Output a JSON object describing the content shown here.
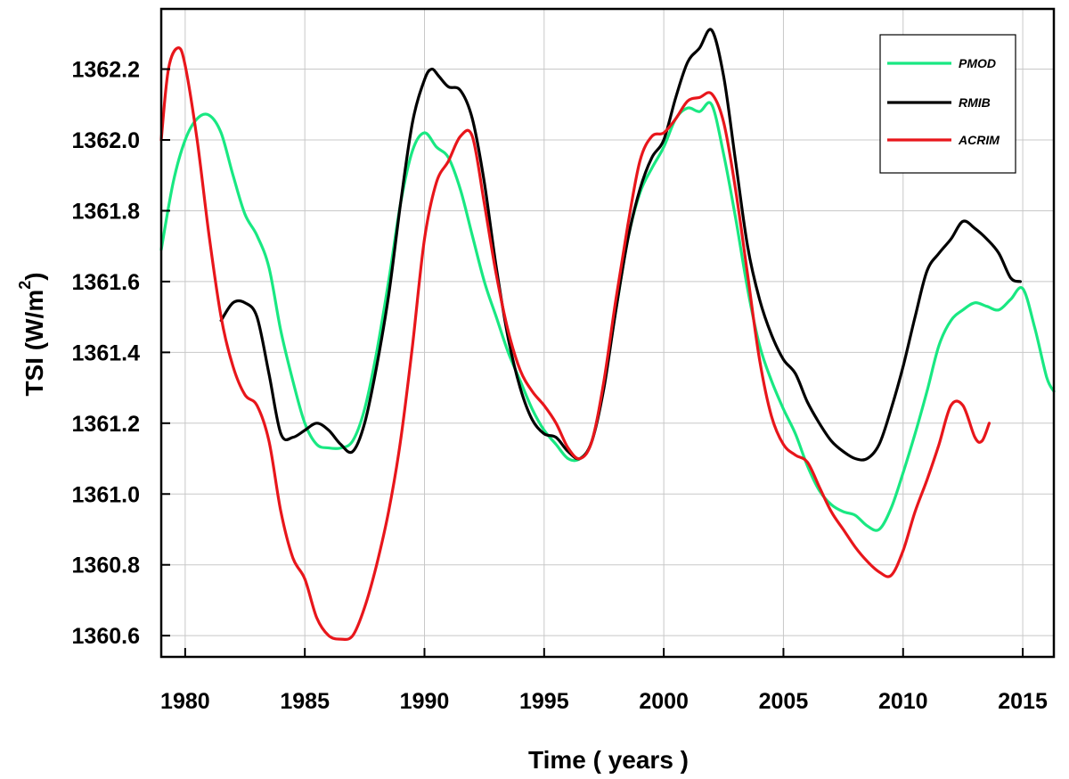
{
  "chart_data": {
    "type": "line",
    "title": "",
    "xlabel": "Time ( years )",
    "ylabel": "TSI (W/m",
    "ylabel_superscript": "2",
    "ylabel_close": ")",
    "xlim": [
      1979,
      2016.3
    ],
    "ylim": [
      1360.54,
      1362.37
    ],
    "x_ticks": [
      1980,
      1985,
      1990,
      1995,
      2000,
      2005,
      2010,
      2015
    ],
    "x_tick_labels": [
      "1980",
      "1985",
      "1990",
      "1995",
      "2000",
      "2005",
      "2010",
      "2015"
    ],
    "y_ticks": [
      1360.6,
      1360.8,
      1361.0,
      1361.2,
      1361.4,
      1361.6,
      1361.8,
      1362.0,
      1362.2
    ],
    "y_tick_labels": [
      "1360.6",
      "1360.8",
      "1361.0",
      "1361.2",
      "1361.4",
      "1361.6",
      "1361.8",
      "1362.0",
      "1362.2"
    ],
    "grid": true,
    "legend_position": "top-right",
    "series": [
      {
        "name": "PMOD",
        "color": "#19e882",
        "x": [
          1979.0,
          1979.5,
          1980.0,
          1980.5,
          1981.0,
          1981.5,
          1982.0,
          1982.5,
          1983.0,
          1983.5,
          1984.0,
          1984.5,
          1985.0,
          1985.5,
          1986.0,
          1986.5,
          1987.0,
          1987.5,
          1988.0,
          1988.5,
          1989.0,
          1989.5,
          1990.0,
          1990.5,
          1991.0,
          1991.5,
          1992.0,
          1992.5,
          1993.0,
          1993.5,
          1994.0,
          1994.5,
          1995.0,
          1995.5,
          1996.0,
          1996.5,
          1997.0,
          1997.5,
          1998.0,
          1998.5,
          1999.0,
          1999.5,
          2000.0,
          2000.5,
          2001.0,
          2001.5,
          2002.0,
          2002.5,
          2003.0,
          2003.5,
          2004.0,
          2004.5,
          2005.0,
          2005.5,
          2006.0,
          2006.5,
          2007.0,
          2007.5,
          2008.0,
          2008.5,
          2009.0,
          2009.5,
          2010.0,
          2010.5,
          2011.0,
          2011.5,
          2012.0,
          2012.5,
          2013.0,
          2013.5,
          2014.0,
          2014.5,
          2015.0,
          2015.5,
          2016.0,
          2016.3
        ],
        "values": [
          1361.69,
          1361.88,
          1362.0,
          1362.06,
          1362.07,
          1362.02,
          1361.9,
          1361.79,
          1361.73,
          1361.64,
          1361.46,
          1361.32,
          1361.2,
          1361.14,
          1361.13,
          1361.13,
          1361.15,
          1361.24,
          1361.4,
          1361.6,
          1361.82,
          1361.97,
          1362.02,
          1361.98,
          1361.95,
          1361.86,
          1361.73,
          1361.6,
          1361.5,
          1361.4,
          1361.32,
          1361.24,
          1361.18,
          1361.14,
          1361.1,
          1361.1,
          1361.15,
          1361.31,
          1361.52,
          1361.72,
          1361.85,
          1361.92,
          1361.98,
          1362.06,
          1362.09,
          1362.08,
          1362.1,
          1361.96,
          1361.78,
          1361.58,
          1361.42,
          1361.32,
          1361.24,
          1361.17,
          1361.08,
          1361.01,
          1360.97,
          1360.95,
          1360.94,
          1360.91,
          1360.9,
          1360.96,
          1361.06,
          1361.17,
          1361.29,
          1361.42,
          1361.49,
          1361.52,
          1361.54,
          1361.53,
          1361.52,
          1361.55,
          1361.58,
          1361.47,
          1361.33,
          1361.29
        ]
      },
      {
        "name": "RMIB",
        "color": "#000000",
        "x": [
          1981.5,
          1982.0,
          1982.5,
          1983.0,
          1983.5,
          1984.0,
          1984.5,
          1985.0,
          1985.5,
          1986.0,
          1986.5,
          1987.0,
          1987.5,
          1988.0,
          1988.5,
          1989.0,
          1989.5,
          1990.0,
          1990.3,
          1990.6,
          1991.0,
          1991.5,
          1992.0,
          1992.5,
          1993.0,
          1993.5,
          1994.0,
          1994.5,
          1995.0,
          1995.5,
          1996.0,
          1996.5,
          1997.0,
          1997.5,
          1998.0,
          1998.5,
          1999.0,
          1999.5,
          2000.0,
          2000.5,
          2001.0,
          2001.5,
          2002.0,
          2002.5,
          2003.0,
          2003.5,
          2004.0,
          2004.5,
          2005.0,
          2005.5,
          2006.0,
          2006.5,
          2007.0,
          2007.5,
          2008.0,
          2008.5,
          2009.0,
          2009.5,
          2010.0,
          2010.5,
          2011.0,
          2011.5,
          2012.0,
          2012.5,
          2013.0,
          2013.5,
          2014.0,
          2014.5,
          2014.9
        ],
        "values": [
          1361.49,
          1361.54,
          1361.54,
          1361.5,
          1361.34,
          1361.17,
          1361.16,
          1361.18,
          1361.2,
          1361.18,
          1361.14,
          1361.12,
          1361.2,
          1361.36,
          1361.56,
          1361.82,
          1362.05,
          1362.17,
          1362.2,
          1362.18,
          1362.15,
          1362.14,
          1362.06,
          1361.88,
          1361.64,
          1361.44,
          1361.3,
          1361.21,
          1361.17,
          1361.16,
          1361.12,
          1361.1,
          1361.15,
          1361.3,
          1361.52,
          1361.72,
          1361.86,
          1361.95,
          1362.0,
          1362.12,
          1362.22,
          1362.26,
          1362.31,
          1362.18,
          1361.94,
          1361.7,
          1361.55,
          1361.45,
          1361.38,
          1361.34,
          1361.26,
          1361.2,
          1361.15,
          1361.12,
          1361.1,
          1361.1,
          1361.14,
          1361.24,
          1361.36,
          1361.5,
          1361.63,
          1361.68,
          1361.72,
          1361.77,
          1361.75,
          1361.72,
          1361.68,
          1361.61,
          1361.6
        ]
      },
      {
        "name": "ACRIM",
        "color": "#e8161b",
        "x": [
          1979.0,
          1979.3,
          1979.7,
          1980.0,
          1980.5,
          1981.0,
          1981.5,
          1982.0,
          1982.5,
          1983.0,
          1983.5,
          1984.0,
          1984.5,
          1985.0,
          1985.5,
          1986.0,
          1986.5,
          1987.0,
          1987.5,
          1988.0,
          1988.5,
          1989.0,
          1989.5,
          1990.0,
          1990.5,
          1991.0,
          1991.5,
          1992.0,
          1992.5,
          1993.0,
          1993.5,
          1994.0,
          1994.5,
          1995.0,
          1995.5,
          1996.0,
          1996.5,
          1997.0,
          1997.5,
          1998.0,
          1998.5,
          1999.0,
          1999.5,
          2000.0,
          2000.5,
          2001.0,
          2001.5,
          2002.0,
          2002.5,
          2003.0,
          2003.5,
          2004.0,
          2004.5,
          2005.0,
          2005.5,
          2006.0,
          2006.5,
          2007.0,
          2007.5,
          2008.0,
          2008.5,
          2009.0,
          2009.5,
          2010.0,
          2010.5,
          2011.0,
          2011.5,
          2012.0,
          2012.5,
          2013.0,
          2013.3,
          2013.6
        ],
        "values": [
          1362.0,
          1362.2,
          1362.26,
          1362.21,
          1362.0,
          1361.73,
          1361.5,
          1361.36,
          1361.28,
          1361.25,
          1361.15,
          1360.95,
          1360.82,
          1360.76,
          1360.65,
          1360.6,
          1360.59,
          1360.6,
          1360.68,
          1360.8,
          1360.95,
          1361.15,
          1361.42,
          1361.72,
          1361.88,
          1361.94,
          1362.01,
          1362.01,
          1361.82,
          1361.62,
          1361.46,
          1361.35,
          1361.29,
          1361.25,
          1361.2,
          1361.13,
          1361.1,
          1361.15,
          1361.32,
          1361.55,
          1361.76,
          1361.94,
          1362.01,
          1362.02,
          1362.06,
          1362.11,
          1362.12,
          1362.13,
          1362.05,
          1361.86,
          1361.62,
          1361.38,
          1361.22,
          1361.14,
          1361.11,
          1361.09,
          1361.02,
          1360.95,
          1360.9,
          1360.85,
          1360.81,
          1360.78,
          1360.77,
          1360.84,
          1360.95,
          1361.04,
          1361.14,
          1361.25,
          1361.25,
          1361.16,
          1361.15,
          1361.2
        ]
      }
    ]
  }
}
